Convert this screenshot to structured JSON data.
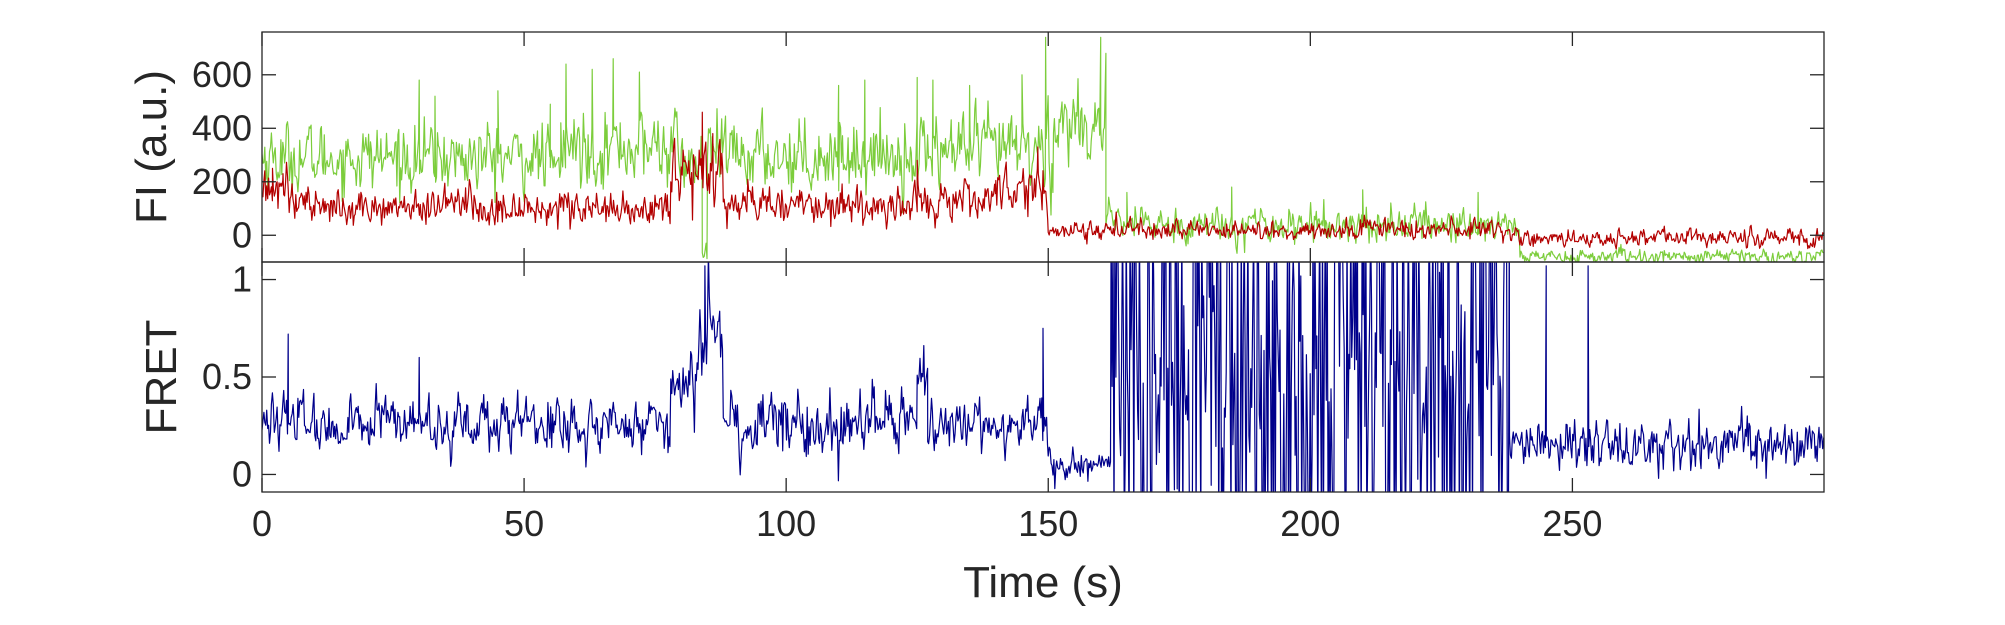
{
  "chart_data": [
    {
      "type": "line",
      "panel": "top",
      "ylabel": "FI (a.u.)",
      "xlim": [
        0,
        298
      ],
      "ylim": [
        -100,
        760
      ],
      "yticks": [
        0,
        200,
        400,
        600
      ],
      "ytick_labels": [
        "0",
        "200",
        "400",
        "600"
      ],
      "x_tick_labels_shown": false,
      "series": [
        {
          "color": "#7ccd3c",
          "segments": [
            {
              "x0": 0,
              "x1": 55,
              "mean": 290,
              "sd": 90,
              "spikes": [
                [
                  30,
                  580
                ],
                [
                  33,
                  520
                ],
                [
                  45,
                  540
                ],
                [
                  55,
                  490
                ]
              ]
            },
            {
              "x0": 55,
              "x1": 57,
              "mean": 260,
              "sd": 50
            },
            {
              "x0": 57,
              "x1": 80,
              "mean": 330,
              "sd": 100,
              "spikes": [
                [
                  58,
                  640
                ],
                [
                  63,
                  620
                ],
                [
                  67,
                  660
                ],
                [
                  72,
                  610
                ]
              ]
            },
            {
              "x0": 80,
              "x1": 84,
              "mean": 260,
              "sd": 80
            },
            {
              "x0": 84,
              "x1": 85,
              "mean": -50,
              "sd": 40
            },
            {
              "x0": 85,
              "x1": 125,
              "mean": 300,
              "sd": 95,
              "spikes": [
                [
                  110,
                  560
                ],
                [
                  115,
                  580
                ],
                [
                  125,
                  590
                ]
              ]
            },
            {
              "x0": 125,
              "x1": 148,
              "mean": 320,
              "sd": 100,
              "spikes": [
                [
                  128,
                  580
                ],
                [
                  135,
                  560
                ],
                [
                  145,
                  600
                ]
              ]
            },
            {
              "x0": 148,
              "x1": 151,
              "mean": 300,
              "sd": 150,
              "spikes": [
                [
                  149.5,
                  740
                ]
              ]
            },
            {
              "x0": 151,
              "x1": 161,
              "mean": 420,
              "sd": 100,
              "spikes": [
                [
                  160,
                  740
                ],
                [
                  161,
                  680
                ]
              ]
            },
            {
              "x0": 161,
              "x1": 240,
              "mean": 40,
              "sd": 50,
              "spikes": [
                [
                  165,
                  160
                ],
                [
                  185,
                  180
                ],
                [
                  210,
                  170
                ],
                [
                  232,
                  160
                ]
              ]
            },
            {
              "x0": 240,
              "x1": 298,
              "mean": -80,
              "sd": 20
            }
          ]
        },
        {
          "color": "#b30000",
          "segments": [
            {
              "x0": 0,
              "x1": 5,
              "mean": 170,
              "sd": 55,
              "spikes": [
                [
                  2,
                  250
                ],
                [
                  4,
                  230
                ]
              ]
            },
            {
              "x0": 5,
              "x1": 55,
              "mean": 110,
              "sd": 50
            },
            {
              "x0": 55,
              "x1": 78,
              "mean": 100,
              "sd": 50
            },
            {
              "x0": 78,
              "x1": 88,
              "mean": 250,
              "sd": 90,
              "spikes": [
                [
                  84,
                  460
                ],
                [
                  86,
                  380
                ]
              ]
            },
            {
              "x0": 88,
              "x1": 125,
              "mean": 110,
              "sd": 50
            },
            {
              "x0": 125,
              "x1": 140,
              "mean": 130,
              "sd": 60,
              "spikes": [
                [
                  125,
                  280
                ]
              ]
            },
            {
              "x0": 140,
              "x1": 150,
              "mean": 170,
              "sd": 70,
              "spikes": [
                [
                  148,
                  330
                ]
              ]
            },
            {
              "x0": 150,
              "x1": 240,
              "mean": 20,
              "sd": 28
            },
            {
              "x0": 240,
              "x1": 298,
              "mean": -10,
              "sd": 25
            }
          ]
        }
      ]
    },
    {
      "type": "line",
      "panel": "bottom",
      "ylabel": "FRET",
      "xlabel": "Time (s)",
      "xlim": [
        0,
        298
      ],
      "ylim": [
        -0.09,
        1.09
      ],
      "yticks": [
        0,
        0.5,
        1
      ],
      "ytick_labels": [
        "0",
        "0.5",
        "1"
      ],
      "xticks": [
        0,
        50,
        100,
        150,
        200,
        250
      ],
      "xtick_labels": [
        "0",
        "50",
        "100",
        "150",
        "200",
        "250"
      ],
      "series": [
        {
          "color": "#00008b",
          "segments": [
            {
              "x0": 0,
              "x1": 60,
              "mean": 0.26,
              "sd": 0.1,
              "spikes": [
                [
                  5,
                  0.72
                ],
                [
                  30,
                  0.6
                ]
              ]
            },
            {
              "x0": 60,
              "x1": 78,
              "mean": 0.24,
              "sd": 0.1
            },
            {
              "x0": 78,
              "x1": 83,
              "mean": 0.45,
              "sd": 0.12
            },
            {
              "x0": 83,
              "x1": 88,
              "mean": 0.75,
              "sd": 0.15,
              "spikes": [
                [
                  84.5,
                  1.07
                ]
              ]
            },
            {
              "x0": 88,
              "x1": 125,
              "mean": 0.25,
              "sd": 0.12
            },
            {
              "x0": 125,
              "x1": 127,
              "mean": 0.55,
              "sd": 0.1
            },
            {
              "x0": 127,
              "x1": 150,
              "mean": 0.26,
              "sd": 0.1,
              "spikes": [
                [
                  149,
                  0.75
                ]
              ]
            },
            {
              "x0": 150,
              "x1": 162,
              "mean": 0.05,
              "sd": 0.06
            },
            {
              "x0": 162,
              "x1": 238,
              "mean": 0.5,
              "sd": 0.6,
              "clip": true
            },
            {
              "x0": 238,
              "x1": 298,
              "mean": 0.16,
              "sd": 0.1,
              "spikes": [
                [
                  245,
                  1.07
                ],
                [
                  253,
                  1.07
                ]
              ]
            }
          ]
        }
      ]
    }
  ]
}
